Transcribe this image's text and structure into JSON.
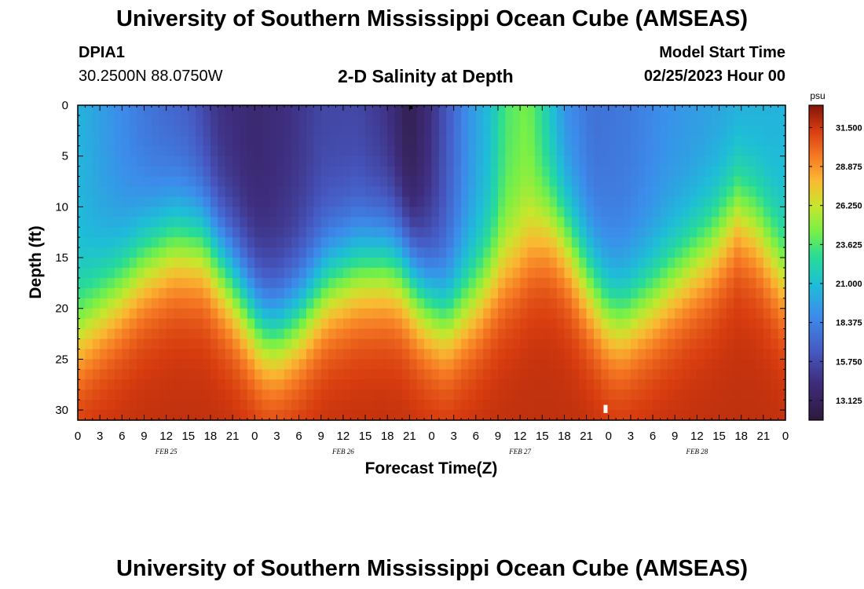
{
  "header": {
    "title": "University of Southern Mississippi Ocean Cube (AMSEAS)",
    "station_id": "DPIA1",
    "station_coords": "30.2500N  88.0750W",
    "plot_title": "2-D Salinity at Depth",
    "model_label": "Model Start Time",
    "model_start": "02/25/2023 Hour 00"
  },
  "footer": {
    "title": "University of Southern Mississippi Ocean Cube (AMSEAS)"
  },
  "chart_data": {
    "type": "heatmap",
    "title": "2-D Salinity at Depth",
    "xlabel": "Forecast Time(Z)",
    "ylabel": "Depth (ft)",
    "x_hours_range": [
      0,
      96
    ],
    "ylim": [
      0,
      31
    ],
    "x_tick_labels": [
      "0",
      "3",
      "6",
      "9",
      "12",
      "15",
      "18",
      "21",
      "0",
      "3",
      "6",
      "9",
      "12",
      "15",
      "18",
      "21",
      "0",
      "3",
      "6",
      "9",
      "12",
      "15",
      "18",
      "21",
      "0",
      "3",
      "6",
      "9",
      "12",
      "15",
      "18",
      "21",
      "0"
    ],
    "x_tick_hours": [
      0,
      3,
      6,
      9,
      12,
      15,
      18,
      21,
      24,
      27,
      30,
      33,
      36,
      39,
      42,
      45,
      48,
      51,
      54,
      57,
      60,
      63,
      66,
      69,
      72,
      75,
      78,
      81,
      84,
      87,
      90,
      93,
      96
    ],
    "date_labels": [
      {
        "label": "FEB 25",
        "hour": 12
      },
      {
        "label": "FEB 26",
        "hour": 36
      },
      {
        "label": "FEB 27",
        "hour": 60
      },
      {
        "label": "FEB 28",
        "hour": 84
      }
    ],
    "y_ticks": [
      0,
      5,
      10,
      15,
      20,
      25,
      30
    ],
    "y_tick_labels": [
      "0",
      "5",
      "10",
      "15",
      "20",
      "25",
      "30"
    ],
    "colorbar": {
      "unit": "psu",
      "min": 11.8,
      "max": 33.0,
      "tick_values": [
        31.5,
        28.875,
        26.25,
        23.625,
        21.0,
        18.375,
        15.75,
        13.125
      ],
      "tick_labels": [
        "31.500",
        "28.875",
        "26.250",
        "23.625",
        "21.000",
        "18.375",
        "15.750",
        "13.125"
      ]
    },
    "halocline_depth_ft": [
      {
        "hour": 0,
        "depth": 22.5
      },
      {
        "hour": 6,
        "depth": 18
      },
      {
        "hour": 9,
        "depth": 15.5
      },
      {
        "hour": 13,
        "depth": 13.5
      },
      {
        "hour": 17,
        "depth": 13.5
      },
      {
        "hour": 21,
        "depth": 17.5
      },
      {
        "hour": 25,
        "depth": 22
      },
      {
        "hour": 27,
        "depth": 22.5
      },
      {
        "hour": 30,
        "depth": 21
      },
      {
        "hour": 34,
        "depth": 17.5
      },
      {
        "hour": 38,
        "depth": 16
      },
      {
        "hour": 42,
        "depth": 15.5
      },
      {
        "hour": 44,
        "depth": 16
      },
      {
        "hour": 47,
        "depth": 19
      },
      {
        "hour": 50,
        "depth": 21
      },
      {
        "hour": 54,
        "depth": 19
      },
      {
        "hour": 57,
        "depth": 16.5
      },
      {
        "hour": 60,
        "depth": 15
      },
      {
        "hour": 62,
        "depth": 13
      },
      {
        "hour": 64,
        "depth": 12
      },
      {
        "hour": 66,
        "depth": 13
      },
      {
        "hour": 69,
        "depth": 17
      },
      {
        "hour": 72,
        "depth": 20.5
      },
      {
        "hour": 74,
        "depth": 21
      },
      {
        "hour": 78,
        "depth": 19
      },
      {
        "hour": 82,
        "depth": 16.5
      },
      {
        "hour": 86,
        "depth": 14
      },
      {
        "hour": 88,
        "depth": 12
      },
      {
        "hour": 89.5,
        "depth": 10.5
      },
      {
        "hour": 92,
        "depth": 12
      },
      {
        "hour": 94,
        "depth": 14.5
      },
      {
        "hour": 96,
        "depth": 17
      }
    ],
    "surface_salinity_psu": [
      {
        "hour": 0,
        "value": 20.5
      },
      {
        "hour": 5,
        "value": 19
      },
      {
        "hour": 10,
        "value": 17.5
      },
      {
        "hour": 15,
        "value": 16.5
      },
      {
        "hour": 19,
        "value": 14.5
      },
      {
        "hour": 24,
        "value": 13.8
      },
      {
        "hour": 29,
        "value": 14.5
      },
      {
        "hour": 33,
        "value": 15.5
      },
      {
        "hour": 38,
        "value": 15.5
      },
      {
        "hour": 42,
        "value": 14.5
      },
      {
        "hour": 45,
        "value": 12.5
      },
      {
        "hour": 48,
        "value": 14.5
      },
      {
        "hour": 53,
        "value": 19
      },
      {
        "hour": 56,
        "value": 21
      },
      {
        "hour": 58,
        "value": 23.5
      },
      {
        "hour": 61,
        "value": 24.5
      },
      {
        "hour": 63,
        "value": 22.5
      },
      {
        "hour": 66,
        "value": 19
      },
      {
        "hour": 70,
        "value": 17.5
      },
      {
        "hour": 75,
        "value": 18
      },
      {
        "hour": 80,
        "value": 19
      },
      {
        "hour": 85,
        "value": 19.5
      },
      {
        "hour": 90,
        "value": 20
      },
      {
        "hour": 96,
        "value": 20.5
      }
    ],
    "max_salinity_psu": 31.8
  }
}
